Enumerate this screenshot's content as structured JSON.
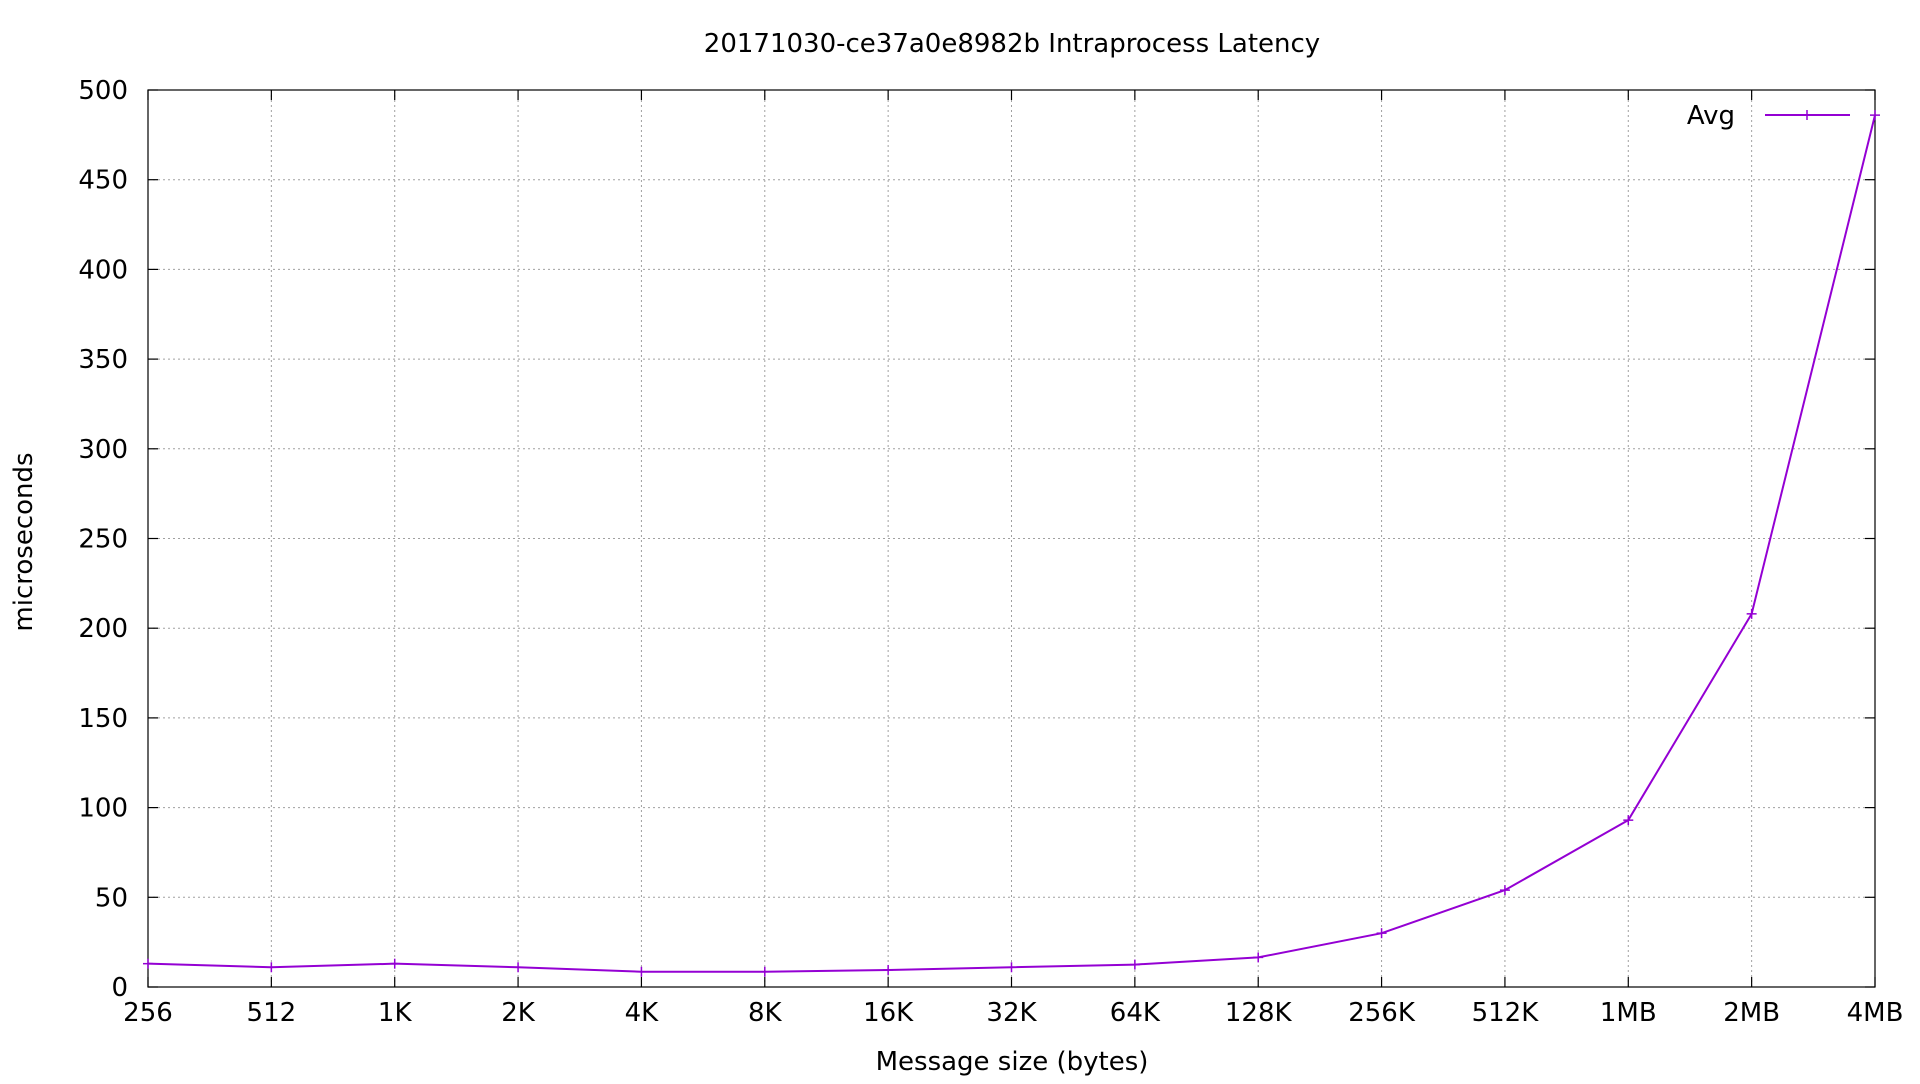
{
  "chart_data": {
    "type": "line",
    "title": "20171030-ce37a0e8982b Intraprocess Latency",
    "xlabel": "Message size (bytes)",
    "ylabel": "microseconds",
    "categories": [
      "256",
      "512",
      "1K",
      "2K",
      "4K",
      "8K",
      "16K",
      "32K",
      "64K",
      "128K",
      "256K",
      "512K",
      "1MB",
      "2MB",
      "4MB"
    ],
    "ylim": [
      0,
      500
    ],
    "yticks": [
      0,
      50,
      100,
      150,
      200,
      250,
      300,
      350,
      400,
      450,
      500
    ],
    "grid": true,
    "legend_position": "top-right",
    "series": [
      {
        "name": "Avg",
        "color": "#9400d3",
        "marker": "plus",
        "values": [
          13,
          11,
          13,
          11,
          8.5,
          8.5,
          9.5,
          11,
          12.5,
          16.5,
          30,
          54,
          93,
          208,
          486
        ]
      }
    ]
  }
}
